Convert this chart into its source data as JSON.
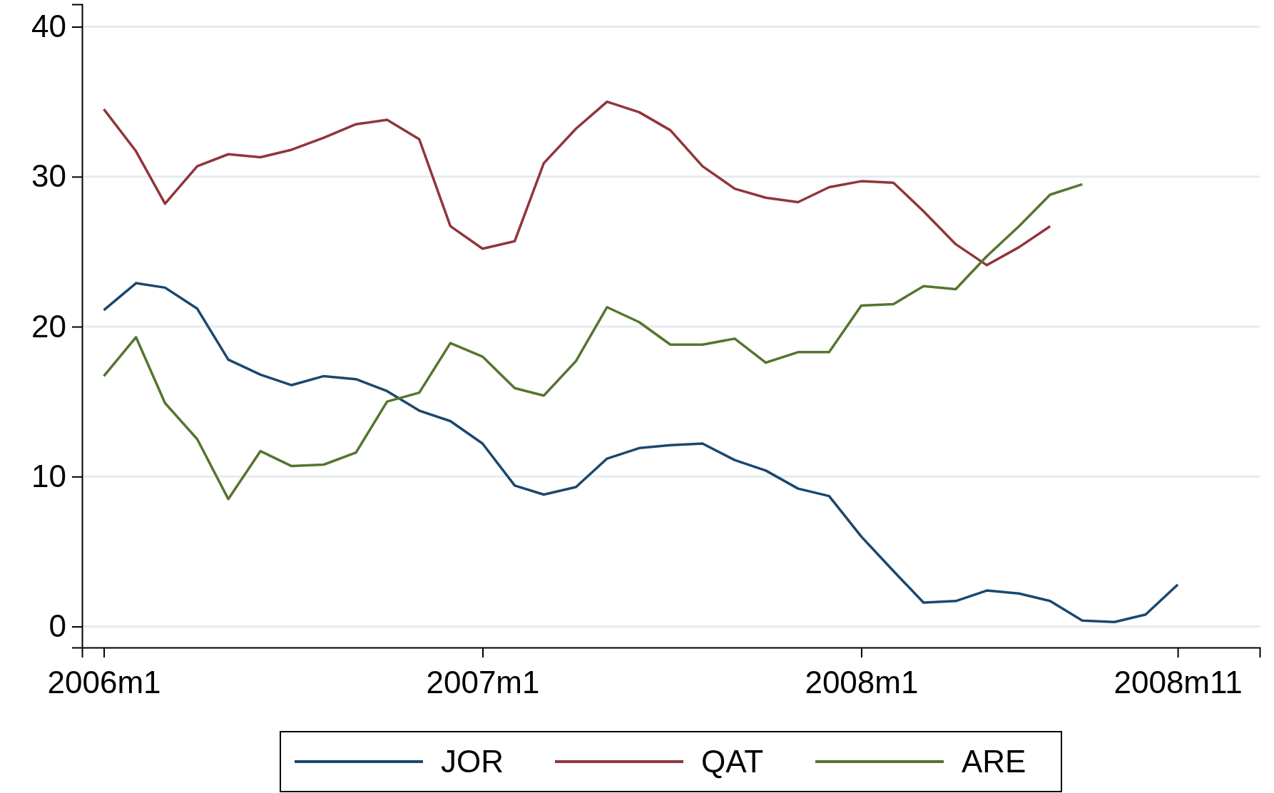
{
  "chart_data": {
    "type": "line",
    "x": [
      "2006-01",
      "2006-02",
      "2006-03",
      "2006-04",
      "2006-05",
      "2006-06",
      "2006-07",
      "2006-08",
      "2006-09",
      "2006-10",
      "2006-11",
      "2006-12",
      "2007-01",
      "2007-02",
      "2007-03",
      "2007-04",
      "2007-05",
      "2007-06",
      "2007-07",
      "2007-08",
      "2007-09",
      "2007-10",
      "2007-11",
      "2007-12",
      "2008-01",
      "2008-02",
      "2008-03",
      "2008-04",
      "2008-05",
      "2008-06",
      "2008-07",
      "2008-08",
      "2008-09",
      "2008-10",
      "2008-11"
    ],
    "series": [
      {
        "name": "JOR",
        "color": "#1a476f",
        "values": [
          21.1,
          22.9,
          22.6,
          21.2,
          17.8,
          16.8,
          16.1,
          16.7,
          16.5,
          15.7,
          14.4,
          13.7,
          12.2,
          9.4,
          8.8,
          9.3,
          11.2,
          11.9,
          12.1,
          12.2,
          11.1,
          10.4,
          9.2,
          8.7,
          6.0,
          3.7,
          1.6,
          1.7,
          2.4,
          2.2,
          1.7,
          0.4,
          0.3,
          0.8,
          2.8
        ]
      },
      {
        "name": "QAT",
        "color": "#90353b",
        "values": [
          34.5,
          31.7,
          28.2,
          30.7,
          31.5,
          31.3,
          31.8,
          32.6,
          33.5,
          33.8,
          32.5,
          26.7,
          25.2,
          25.7,
          30.9,
          33.2,
          35.0,
          34.3,
          33.1,
          30.7,
          29.2,
          28.6,
          28.3,
          29.3,
          29.7,
          29.6,
          27.7,
          25.5,
          24.1,
          25.3,
          26.7,
          null,
          null,
          null,
          null
        ]
      },
      {
        "name": "ARE",
        "color": "#55752f",
        "values": [
          16.7,
          19.3,
          14.9,
          12.5,
          8.5,
          11.7,
          10.7,
          10.8,
          11.6,
          15.0,
          15.6,
          18.9,
          18.0,
          15.9,
          15.4,
          17.7,
          21.3,
          20.3,
          18.8,
          18.8,
          19.2,
          17.6,
          18.3,
          18.3,
          21.4,
          21.5,
          22.7,
          22.5,
          24.7,
          26.7,
          28.8,
          29.5,
          null,
          null,
          null
        ]
      }
    ],
    "xlim": [
      "2005-12-11",
      "2009-01-19"
    ],
    "xticks": [
      {
        "value": "2006-01",
        "label": "2006m1"
      },
      {
        "value": "2007-01",
        "label": "2007m1"
      },
      {
        "value": "2008-01",
        "label": "2008m1"
      },
      {
        "value": "2008-11",
        "label": "2008m11"
      }
    ],
    "ylim": [
      -1.4,
      41.5
    ],
    "yticks": [
      0,
      10,
      20,
      30,
      40
    ],
    "grid": "y",
    "legend": "bottom",
    "line_style": "solid",
    "marker": "none"
  }
}
